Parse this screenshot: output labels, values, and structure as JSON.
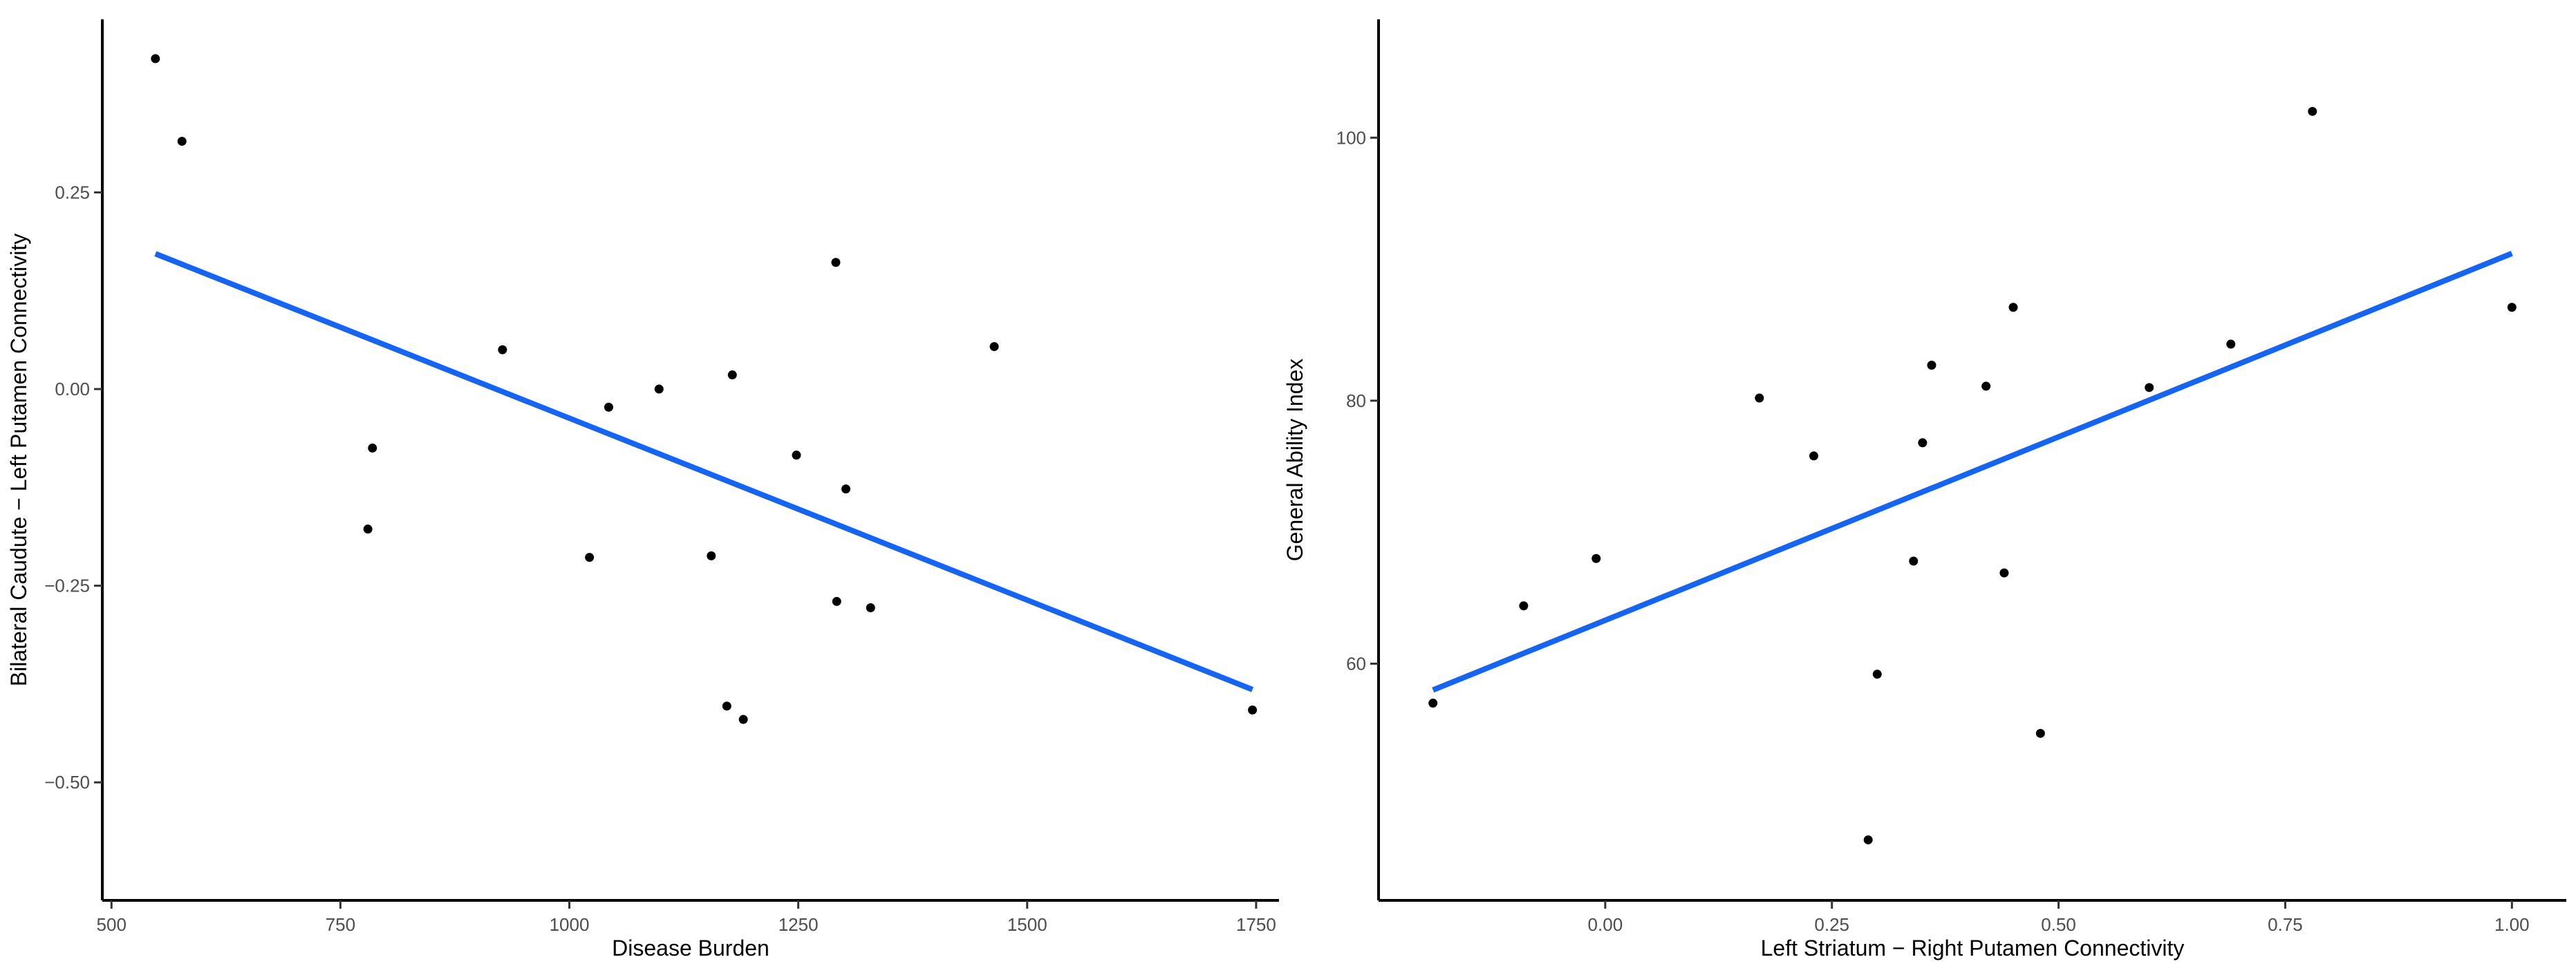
{
  "chart_data": [
    {
      "type": "scatter",
      "xlabel": "Disease Burden",
      "ylabel": "Bilateral Caudute − Left Putamen Connectivity",
      "xlim": [
        490,
        1775
      ],
      "ylim": [
        -0.65,
        0.47
      ],
      "xticks": [
        500,
        750,
        1000,
        1250,
        1500,
        1750
      ],
      "xtick_labels": [
        "500",
        "750",
        "1000",
        "1250",
        "1500",
        "1750"
      ],
      "yticks": [
        -0.5,
        -0.25,
        0.0,
        0.25
      ],
      "ytick_labels": [
        "−0.50",
        "−0.25",
        "0.00",
        "0.25"
      ],
      "grid": false,
      "points": [
        {
          "x": 548,
          "y": 0.42
        },
        {
          "x": 577,
          "y": 0.315
        },
        {
          "x": 785,
          "y": -0.075
        },
        {
          "x": 780,
          "y": -0.178
        },
        {
          "x": 927,
          "y": 0.05
        },
        {
          "x": 1022,
          "y": -0.214
        },
        {
          "x": 1043,
          "y": -0.023
        },
        {
          "x": 1098,
          "y": 0.0
        },
        {
          "x": 1155,
          "y": -0.212
        },
        {
          "x": 1172,
          "y": -0.403
        },
        {
          "x": 1178,
          "y": 0.018
        },
        {
          "x": 1190,
          "y": -0.42
        },
        {
          "x": 1248,
          "y": -0.084
        },
        {
          "x": 1291,
          "y": 0.161
        },
        {
          "x": 1292,
          "y": -0.27
        },
        {
          "x": 1302,
          "y": -0.127
        },
        {
          "x": 1329,
          "y": -0.278
        },
        {
          "x": 1464,
          "y": 0.054
        },
        {
          "x": 1746,
          "y": -0.408
        }
      ],
      "fit_line": {
        "x": [
          548,
          1746
        ],
        "y": [
          0.172,
          -0.382
        ],
        "color": "#1565f2"
      },
      "point_color": "#000000"
    },
    {
      "type": "scatter",
      "xlabel": "Left Striatum − Right Putamen Connectivity",
      "ylabel": "General Ability Index",
      "xlim": [
        -0.25,
        1.06
      ],
      "ylim": [
        42,
        109
      ],
      "xticks": [
        0.0,
        0.25,
        0.5,
        0.75,
        1.0
      ],
      "xtick_labels": [
        "0.00",
        "0.25",
        "0.50",
        "0.75",
        "1.00"
      ],
      "yticks": [
        60,
        80,
        100
      ],
      "ytick_labels": [
        "60",
        "80",
        "100"
      ],
      "grid": false,
      "points": [
        {
          "x": -0.19,
          "y": 57
        },
        {
          "x": -0.09,
          "y": 64.4
        },
        {
          "x": -0.01,
          "y": 68
        },
        {
          "x": 0.17,
          "y": 80.2
        },
        {
          "x": 0.23,
          "y": 75.8
        },
        {
          "x": 0.29,
          "y": 46.6
        },
        {
          "x": 0.3,
          "y": 59.2
        },
        {
          "x": 0.34,
          "y": 67.8
        },
        {
          "x": 0.35,
          "y": 76.8
        },
        {
          "x": 0.36,
          "y": 82.7
        },
        {
          "x": 0.42,
          "y": 81.1
        },
        {
          "x": 0.44,
          "y": 66.9
        },
        {
          "x": 0.45,
          "y": 87.1
        },
        {
          "x": 0.48,
          "y": 54.7
        },
        {
          "x": 0.6,
          "y": 81
        },
        {
          "x": 0.69,
          "y": 84.3
        },
        {
          "x": 0.78,
          "y": 102
        },
        {
          "x": 1.0,
          "y": 87.1
        }
      ],
      "fit_line": {
        "x": [
          -0.19,
          1.0
        ],
        "y": [
          58,
          91.2
        ],
        "color": "#1565f2"
      },
      "point_color": "#000000"
    }
  ]
}
